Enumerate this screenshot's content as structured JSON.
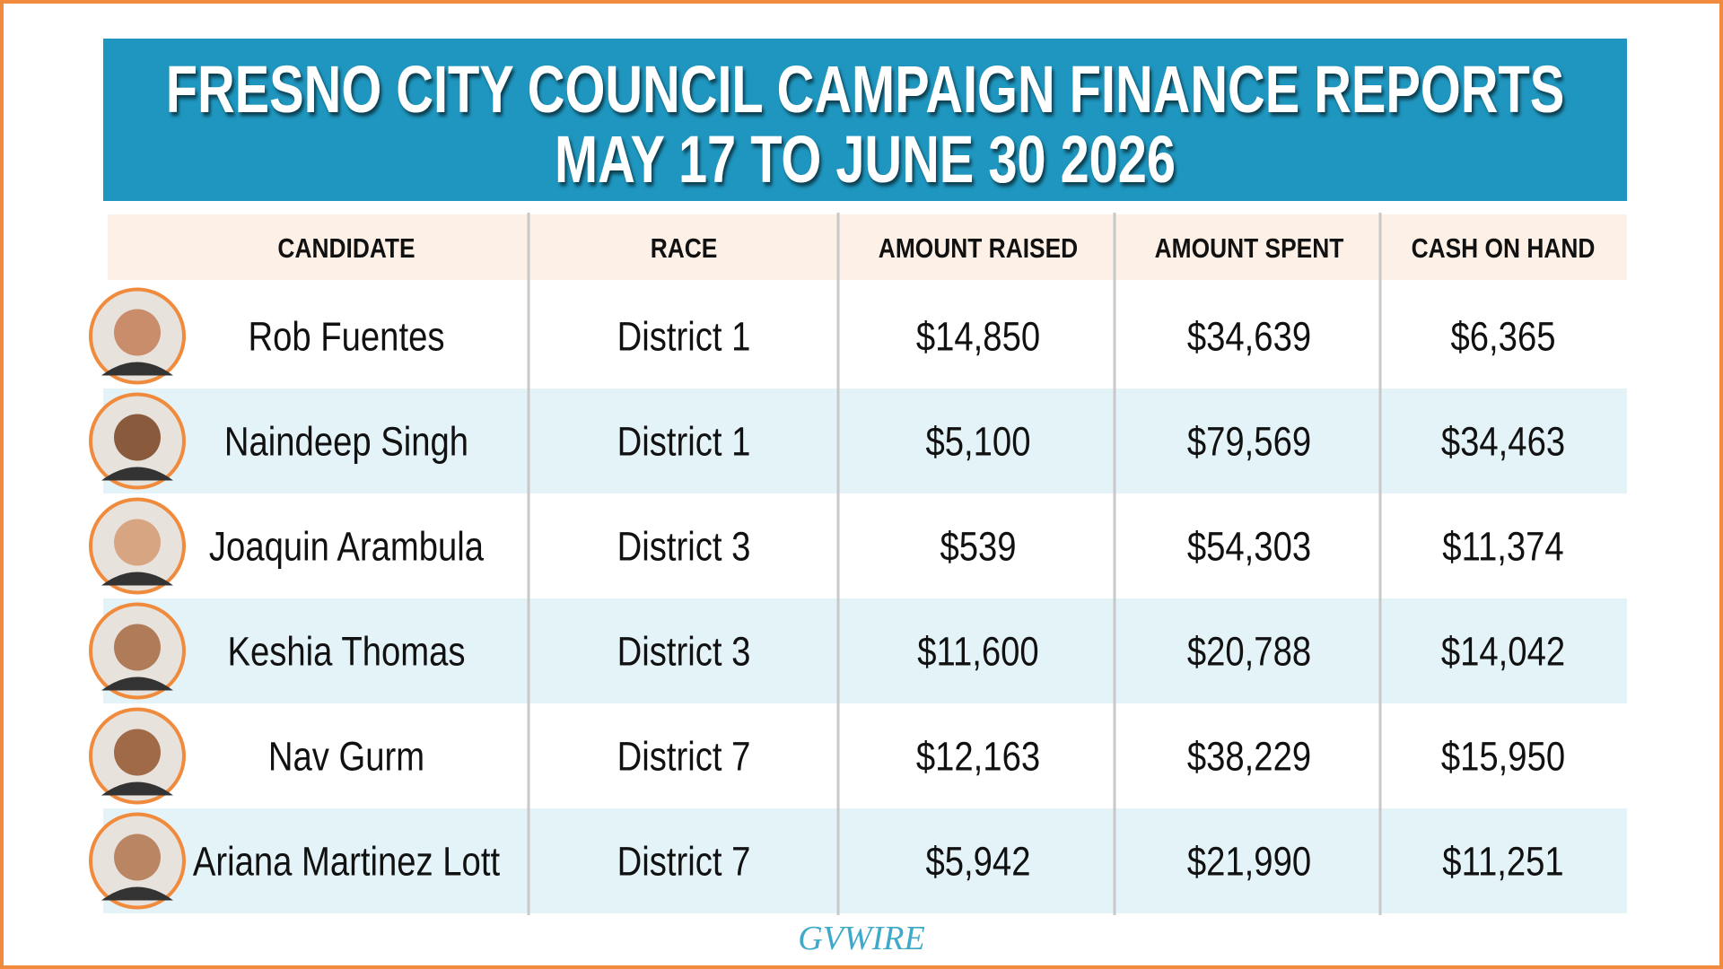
{
  "header": {
    "title_lines": [
      "FRESNO CITY COUNCIL CAMPAIGN FINANCE REPORTS",
      "MAY 17 TO JUNE 30 2026"
    ]
  },
  "table": {
    "columns": [
      "CANDIDATE",
      "RACE",
      "AMOUNT RAISED",
      "AMOUNT SPENT",
      "CASH ON HAND"
    ],
    "rows": [
      [
        "Rob Fuentes",
        "District 1",
        "$14,850",
        "$34,639",
        "$6,365"
      ],
      [
        "Naindeep Singh",
        "District 1",
        "$5,100",
        "$79,569",
        "$34,463"
      ],
      [
        "Joaquin Arambula",
        "District 3",
        "$539",
        "$54,303",
        "$11,374"
      ],
      [
        "Keshia Thomas",
        "District 3",
        "$11,600",
        "$20,788",
        "$14,042"
      ],
      [
        "Nav Gurm",
        "District 7",
        "$12,163",
        "$38,229",
        "$15,950"
      ],
      [
        "Ariana Martinez Lott",
        "District 7",
        "$5,942",
        "$21,990",
        "$11,251"
      ]
    ]
  },
  "footer": {
    "logo": "GVWIRE"
  }
}
